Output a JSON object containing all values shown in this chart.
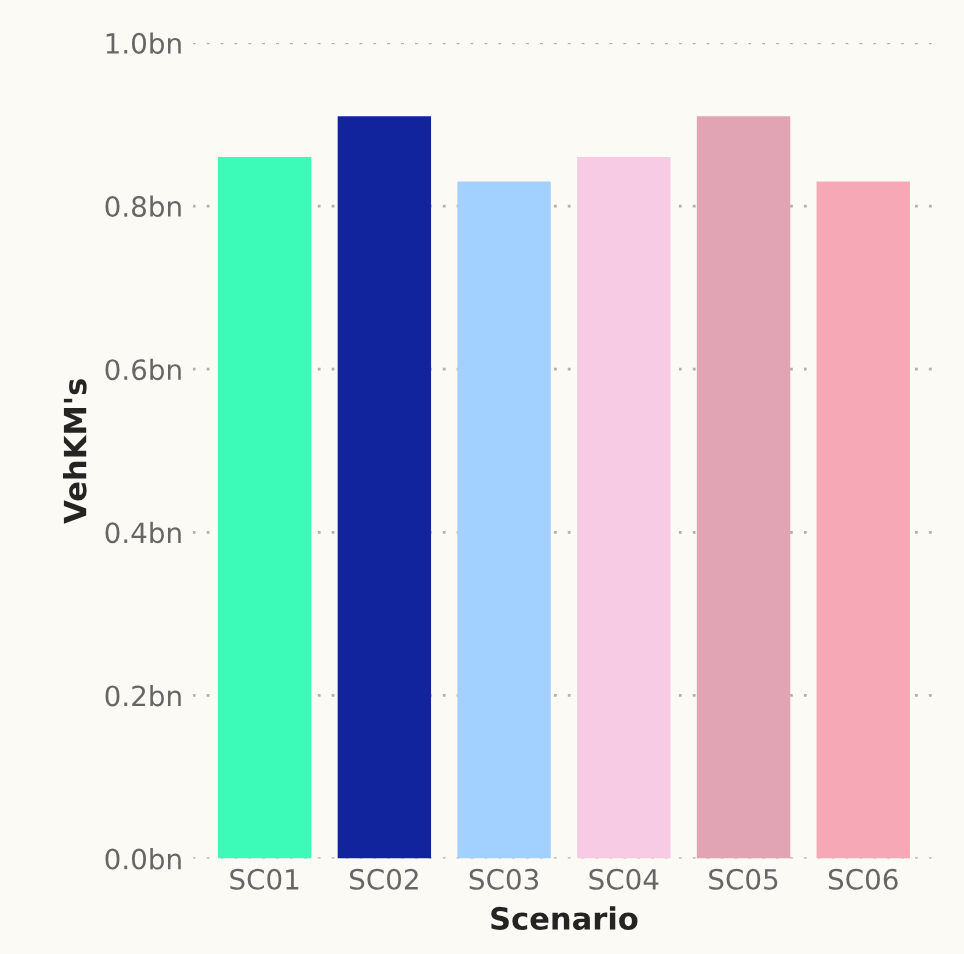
{
  "chart_data": {
    "type": "bar",
    "xlabel": "Scenario",
    "ylabel": "VehKM's",
    "categories": [
      "SC01",
      "SC02",
      "SC03",
      "SC04",
      "SC05",
      "SC06"
    ],
    "values": [
      0.86,
      0.91,
      0.83,
      0.86,
      0.91,
      0.83
    ],
    "colors": [
      "#3cfbb8",
      "#12239e",
      "#a3d1ff",
      "#f8cbe5",
      "#e0a4b4",
      "#f7a8b6"
    ],
    "ylim": [
      0,
      1.0
    ],
    "yticks": [
      {
        "value": 0,
        "label": "0.0bn"
      },
      {
        "value": 0.2,
        "label": "0.2bn"
      },
      {
        "value": 0.4,
        "label": "0.4bn"
      },
      {
        "value": 0.6,
        "label": "0.6bn"
      },
      {
        "value": 0.8,
        "label": "0.8bn"
      },
      {
        "value": 1.0,
        "label": "1.0bn"
      }
    ],
    "grid": "y",
    "legend": false
  }
}
